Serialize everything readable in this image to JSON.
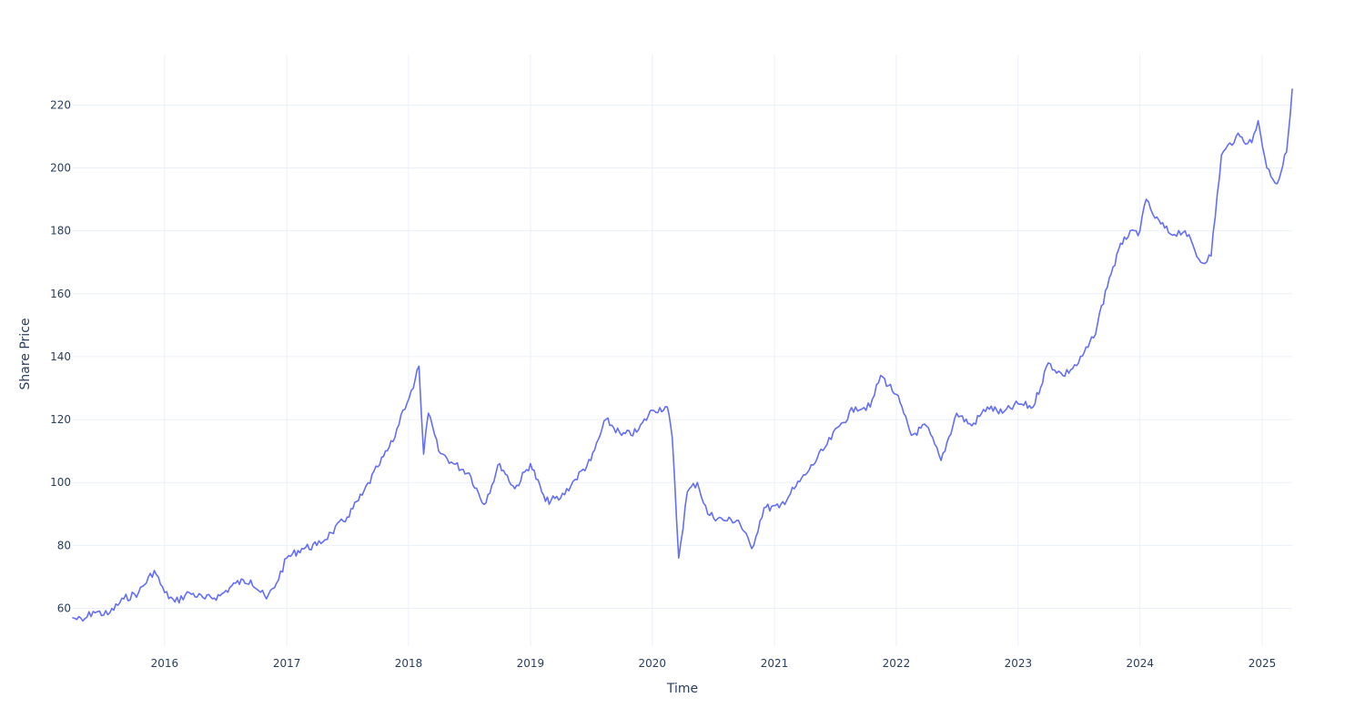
{
  "chart_data": {
    "type": "line",
    "title": "",
    "xlabel": "Time",
    "ylabel": "Share Price",
    "xlim": [
      "2015-04-01",
      "2025-04-01"
    ],
    "ylim": [
      48,
      236
    ],
    "x_ticks": [
      "2016",
      "2017",
      "2018",
      "2019",
      "2020",
      "2021",
      "2022",
      "2023",
      "2024",
      "2025"
    ],
    "y_ticks": [
      60,
      80,
      100,
      120,
      140,
      160,
      180,
      200,
      220
    ],
    "grid": true,
    "legend": "none",
    "colors": {
      "series": "#636efa",
      "grid": "#ebf0f8",
      "text": "#2a3f5f",
      "background": "#ffffff"
    },
    "series": [
      {
        "x": [
          "2015-04-01",
          "2015-05-01",
          "2015-06-01",
          "2015-07-15",
          "2015-09-01",
          "2015-10-15",
          "2015-12-01",
          "2016-01-01",
          "2016-02-01",
          "2016-03-15",
          "2016-05-01",
          "2016-06-15",
          "2016-08-01",
          "2016-09-15",
          "2016-11-01",
          "2016-12-01",
          "2017-01-01",
          "2017-02-15",
          "2017-04-01",
          "2017-05-15",
          "2017-07-01",
          "2017-08-15",
          "2017-10-01",
          "2017-11-15",
          "2017-12-15",
          "2018-01-15",
          "2018-02-01",
          "2018-02-15",
          "2018-03-01",
          "2018-04-01",
          "2018-05-15",
          "2018-07-01",
          "2018-08-15",
          "2018-10-01",
          "2018-11-15",
          "2019-01-01",
          "2019-02-15",
          "2019-04-01",
          "2019-05-15",
          "2019-07-01",
          "2019-08-15",
          "2019-10-01",
          "2019-11-15",
          "2020-01-01",
          "2020-02-15",
          "2020-03-01",
          "2020-03-20",
          "2020-04-15",
          "2020-05-15",
          "2020-06-15",
          "2020-08-01",
          "2020-09-15",
          "2020-10-25",
          "2020-12-01",
          "2021-01-15",
          "2021-03-01",
          "2021-04-15",
          "2021-06-01",
          "2021-07-15",
          "2021-09-01",
          "2021-10-15",
          "2021-11-15",
          "2022-01-01",
          "2022-02-15",
          "2022-04-01",
          "2022-05-15",
          "2022-07-01",
          "2022-08-15",
          "2022-10-01",
          "2022-11-15",
          "2023-01-01",
          "2023-02-15",
          "2023-04-01",
          "2023-05-15",
          "2023-07-01",
          "2023-08-15",
          "2023-10-01",
          "2023-11-15",
          "2024-01-01",
          "2024-01-20",
          "2024-02-15",
          "2024-04-01",
          "2024-05-15",
          "2024-07-01",
          "2024-08-01",
          "2024-09-01",
          "2024-10-15",
          "2024-12-01",
          "2024-12-20",
          "2025-01-15",
          "2025-02-15",
          "2025-03-15",
          "2025-04-01"
        ],
        "y": [
          57,
          56,
          59,
          58,
          63,
          65,
          72,
          65,
          62,
          65,
          63,
          64,
          68,
          69,
          63,
          68,
          76,
          79,
          80,
          84,
          89,
          96,
          105,
          113,
          123,
          130,
          137,
          109,
          122,
          110,
          106,
          103,
          93,
          106,
          98,
          106,
          94,
          95,
          101,
          107,
          120,
          115,
          116,
          123,
          124,
          114,
          76,
          97,
          100,
          90,
          88,
          88,
          79,
          92,
          92,
          98,
          104,
          111,
          118,
          124,
          124,
          134,
          128,
          115,
          118,
          107,
          122,
          118,
          124,
          122,
          125,
          124,
          138,
          134,
          138,
          146,
          165,
          178,
          180,
          190,
          184,
          179,
          180,
          170,
          172,
          204,
          210,
          208,
          215,
          200,
          195,
          205,
          225
        ]
      }
    ]
  }
}
